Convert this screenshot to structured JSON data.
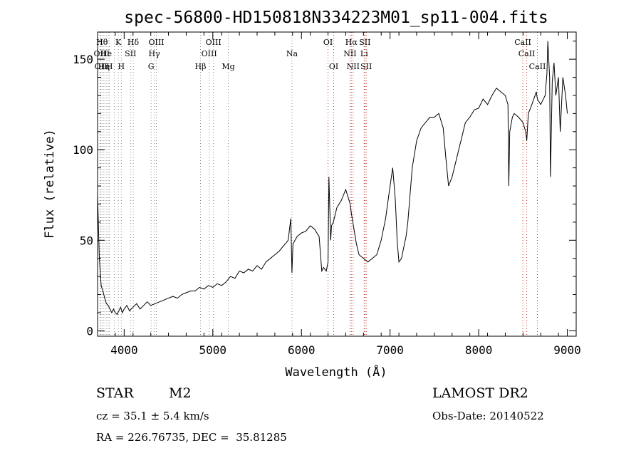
{
  "chart_data": {
    "type": "line",
    "title": "spec-56800-HD150818N334223M01_sp11-004.fits",
    "xlabel": "Wavelength (Å)",
    "ylabel": "Flux (relative)",
    "xlim": [
      3700,
      9100
    ],
    "ylim": [
      -3,
      165
    ],
    "x_ticks": [
      4000,
      5000,
      6000,
      7000,
      8000,
      9000
    ],
    "y_ticks": [
      0,
      50,
      100,
      150
    ],
    "grid": false,
    "series": [
      {
        "x": [
          3700,
          3720,
          3740,
          3760,
          3780,
          3800,
          3820,
          3840,
          3860,
          3880,
          3900,
          3920,
          3940,
          3960,
          3980,
          4000,
          4030,
          4060,
          4100,
          4140,
          4180,
          4220,
          4260,
          4300,
          4350,
          4400,
          4450,
          4500,
          4550,
          4600,
          4650,
          4700,
          4750,
          4800,
          4850,
          4900,
          4950,
          5000,
          5050,
          5100,
          5150,
          5200,
          5250,
          5300,
          5350,
          5400,
          5450,
          5500,
          5550,
          5600,
          5650,
          5700,
          5750,
          5800,
          5850,
          5880,
          5893,
          5905,
          5950,
          6000,
          6050,
          6100,
          6150,
          6200,
          6230,
          6250,
          6280,
          6300,
          6310,
          6330,
          6340,
          6360,
          6400,
          6450,
          6500,
          6550,
          6563,
          6580,
          6620,
          6650,
          6700,
          6750,
          6800,
          6850,
          6900,
          6950,
          7000,
          7030,
          7060,
          7080,
          7100,
          7130,
          7150,
          7180,
          7200,
          7250,
          7300,
          7350,
          7400,
          7450,
          7500,
          7550,
          7600,
          7630,
          7660,
          7700,
          7750,
          7800,
          7850,
          7900,
          7950,
          8000,
          8050,
          8100,
          8150,
          8200,
          8250,
          8300,
          8330,
          8340,
          8350,
          8380,
          8400,
          8450,
          8500,
          8530,
          8542,
          8560,
          8600,
          8650,
          8662,
          8700,
          8750,
          8770,
          8780,
          8800,
          8810,
          8830,
          8850,
          8870,
          8900,
          8920,
          8950,
          8980,
          9000
        ],
        "values": [
          75,
          40,
          25,
          22,
          18,
          15,
          14,
          12,
          10,
          12,
          10,
          9,
          11,
          13,
          10,
          12,
          14,
          11,
          13,
          15,
          12,
          14,
          16,
          14,
          15,
          16,
          17,
          18,
          19,
          18,
          20,
          21,
          22,
          22,
          24,
          23,
          25,
          24,
          26,
          25,
          27,
          30,
          29,
          33,
          32,
          34,
          33,
          36,
          34,
          38,
          40,
          42,
          44,
          47,
          50,
          62,
          32,
          48,
          52,
          54,
          55,
          58,
          56,
          52,
          33,
          35,
          33,
          38,
          85,
          50,
          58,
          60,
          68,
          72,
          78,
          70,
          65,
          60,
          48,
          42,
          40,
          38,
          40,
          42,
          50,
          62,
          80,
          90,
          72,
          50,
          38,
          40,
          45,
          52,
          60,
          90,
          105,
          112,
          115,
          118,
          118,
          120,
          112,
          95,
          80,
          85,
          95,
          105,
          115,
          118,
          122,
          123,
          128,
          125,
          130,
          134,
          132,
          130,
          125,
          80,
          110,
          118,
          120,
          118,
          115,
          110,
          105,
          120,
          125,
          132,
          128,
          125,
          130,
          142,
          160,
          140,
          85,
          138,
          148,
          130,
          140,
          110,
          140,
          130,
          120
        ]
      }
    ],
    "lines": [
      {
        "x": 3750,
        "label": "Hθ",
        "row": 0
      },
      {
        "x": 3727,
        "label": "OII",
        "row": 1
      },
      {
        "x": 3736,
        "label": "OII",
        "row": 2
      },
      {
        "x": 3771,
        "label": "Hη",
        "row": 2
      },
      {
        "x": 3797,
        "label": "He",
        "row": 1
      },
      {
        "x": 3820,
        "label": "I",
        "row": 1
      },
      {
        "x": 3834,
        "label": "H",
        "row": 2
      },
      {
        "x": 3889,
        "label": "",
        "row": 0
      },
      {
        "x": 3934,
        "label": "K",
        "row": 0
      },
      {
        "x": 3968,
        "label": "H",
        "row": 2
      },
      {
        "x": 4072,
        "label": "SII",
        "row": 1
      },
      {
        "x": 4102,
        "label": "Hδ",
        "row": 0
      },
      {
        "x": 4304,
        "label": "G",
        "row": 2
      },
      {
        "x": 4340,
        "label": "Hγ",
        "row": 1
      },
      {
        "x": 4363,
        "label": "OIII",
        "row": 0
      },
      {
        "x": 4861,
        "label": "Hβ",
        "row": 2
      },
      {
        "x": 4959,
        "label": "OIII",
        "row": 1
      },
      {
        "x": 5007,
        "label": "OIII",
        "row": 0
      },
      {
        "x": 5175,
        "label": "Mg",
        "row": 2
      },
      {
        "x": 5893,
        "label": "Na",
        "row": 1
      },
      {
        "x": 6300,
        "label": "OI",
        "row": 0
      },
      {
        "x": 6364,
        "label": "OI",
        "row": 2
      },
      {
        "x": 6548,
        "label": "NII",
        "row": 1
      },
      {
        "x": 6563,
        "label": "Hα",
        "row": 0
      },
      {
        "x": 6583,
        "label": "NII",
        "row": 2
      },
      {
        "x": 6708,
        "label": "Li",
        "row": 1
      },
      {
        "x": 6716,
        "label": "SII",
        "row": 0
      },
      {
        "x": 6731,
        "label": "SII",
        "row": 2
      },
      {
        "x": 8498,
        "label": "CaII",
        "row": 0
      },
      {
        "x": 8542,
        "label": "CaII",
        "row": 1
      },
      {
        "x": 8662,
        "label": "CaII",
        "row": 2
      }
    ]
  },
  "info": {
    "class_label": "STAR",
    "subclass": "M2",
    "survey": "LAMOST DR2",
    "cz": "cz = 35.1 ± 5.4 km/s",
    "obs_date": "Obs-Date: 20140522",
    "coords": "RA = 226.76735, DEC =  35.81285"
  }
}
